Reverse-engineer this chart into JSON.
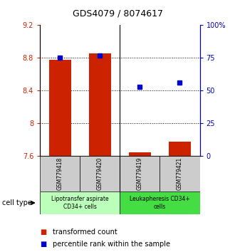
{
  "title": "GDS4079 / 8074617",
  "samples": [
    "GSM779418",
    "GSM779420",
    "GSM779419",
    "GSM779421"
  ],
  "bar_values": [
    8.78,
    8.86,
    7.65,
    7.78
  ],
  "dot_values": [
    75,
    77,
    53,
    56
  ],
  "bar_color": "#cc2200",
  "dot_color": "#0000cc",
  "ylim_left": [
    7.6,
    9.2
  ],
  "ylim_right": [
    0,
    100
  ],
  "yticks_left": [
    7.6,
    8.0,
    8.4,
    8.8,
    9.2
  ],
  "ytick_labels_left": [
    "7.6",
    "8",
    "8.4",
    "8.8",
    "9.2"
  ],
  "yticks_right": [
    0,
    25,
    50,
    75,
    100
  ],
  "ytick_labels_right": [
    "0",
    "25",
    "50",
    "75",
    "100%"
  ],
  "hlines": [
    8.0,
    8.4,
    8.8
  ],
  "groups": [
    {
      "label": "Lipotransfer aspirate\nCD34+ cells",
      "samples": [
        0,
        1
      ],
      "color": "#bbffbb"
    },
    {
      "label": "Leukapheresis CD34+\ncells",
      "samples": [
        2,
        3
      ],
      "color": "#44dd44"
    }
  ],
  "cell_type_label": "cell type",
  "legend_bar_label": "transformed count",
  "legend_dot_label": "percentile rank within the sample",
  "bar_color_left": "#cc2200",
  "bar_color_right": "#0000cc",
  "bar_width": 0.55,
  "sample_box_color": "#cccccc",
  "divider_col": 1.5
}
